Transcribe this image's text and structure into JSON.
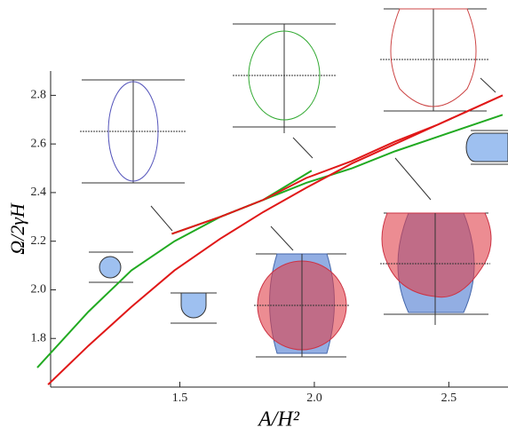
{
  "chart_data": {
    "type": "line",
    "x_label": "A/H²",
    "y_label": "Ω/2γH",
    "xlim": [
      0.97,
      2.72
    ],
    "ylim": [
      1.6,
      2.9
    ],
    "xticks": [
      1.5,
      {
        "value": 2.0,
        "label": "2.0"
      },
      2.5
    ],
    "yticks": [
      1.8,
      {
        "value": 2.0,
        "label": "2.0"
      },
      2.2,
      2.4,
      2.6,
      2.8
    ],
    "series": [
      {
        "color": "#22aa22",
        "x": [
          0.97,
          1.16,
          1.32,
          1.48,
          1.65,
          1.81,
          1.97,
          2.14,
          2.3,
          2.46,
          2.7
        ],
        "values": [
          1.68,
          1.91,
          2.08,
          2.2,
          2.3,
          2.37,
          2.44,
          2.5,
          2.57,
          2.63,
          2.72
        ]
      },
      {
        "color": "#e01818",
        "x": [
          1.01,
          1.16,
          1.32,
          1.48,
          1.65,
          1.81,
          1.97,
          2.14,
          2.3,
          2.46,
          2.7
        ],
        "values": [
          1.61,
          1.77,
          1.93,
          2.08,
          2.21,
          2.32,
          2.42,
          2.52,
          2.6,
          2.68,
          2.8
        ]
      },
      {
        "color": "#22aa22",
        "x": [
          1.47,
          1.65,
          1.81,
          1.99
        ],
        "values": [
          2.23,
          2.3,
          2.37,
          2.49
        ]
      },
      {
        "color": "#e01818",
        "x": [
          1.47,
          1.65,
          1.81,
          1.97,
          2.14,
          2.3,
          2.46,
          2.7
        ],
        "values": [
          2.23,
          2.3,
          2.37,
          2.46,
          2.53,
          2.61,
          2.68,
          2.8
        ]
      }
    ]
  }
}
